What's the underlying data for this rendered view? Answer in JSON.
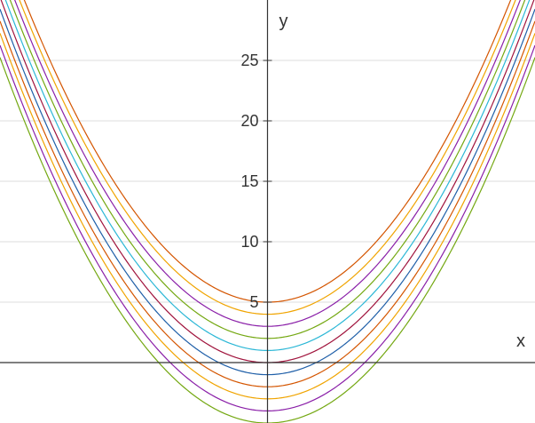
{
  "chart_data": {
    "type": "line",
    "title": "",
    "xlabel": "x",
    "ylabel": "y",
    "xlim": [
      -5.5,
      5.5
    ],
    "ylim": [
      -5,
      30
    ],
    "y_ticks": [
      5,
      10,
      15,
      20,
      25
    ],
    "y_tick_labels": [
      "5",
      "10",
      "15",
      "20",
      "25"
    ],
    "grid": true,
    "legend": "none",
    "function": "y = x^2 + c",
    "series": [
      {
        "c": 5,
        "color": "#d45500"
      },
      {
        "c": 4,
        "color": "#f0a400"
      },
      {
        "c": 3,
        "color": "#8a1fa8"
      },
      {
        "c": 2,
        "color": "#74a812"
      },
      {
        "c": 1,
        "color": "#2bb7d6"
      },
      {
        "c": 0,
        "color": "#a0133c"
      },
      {
        "c": -1,
        "color": "#1f5fa8"
      },
      {
        "c": -2,
        "color": "#d45500"
      },
      {
        "c": -3,
        "color": "#f0a400"
      },
      {
        "c": -4,
        "color": "#8a1fa8"
      },
      {
        "c": -5,
        "color": "#74a812"
      }
    ]
  }
}
